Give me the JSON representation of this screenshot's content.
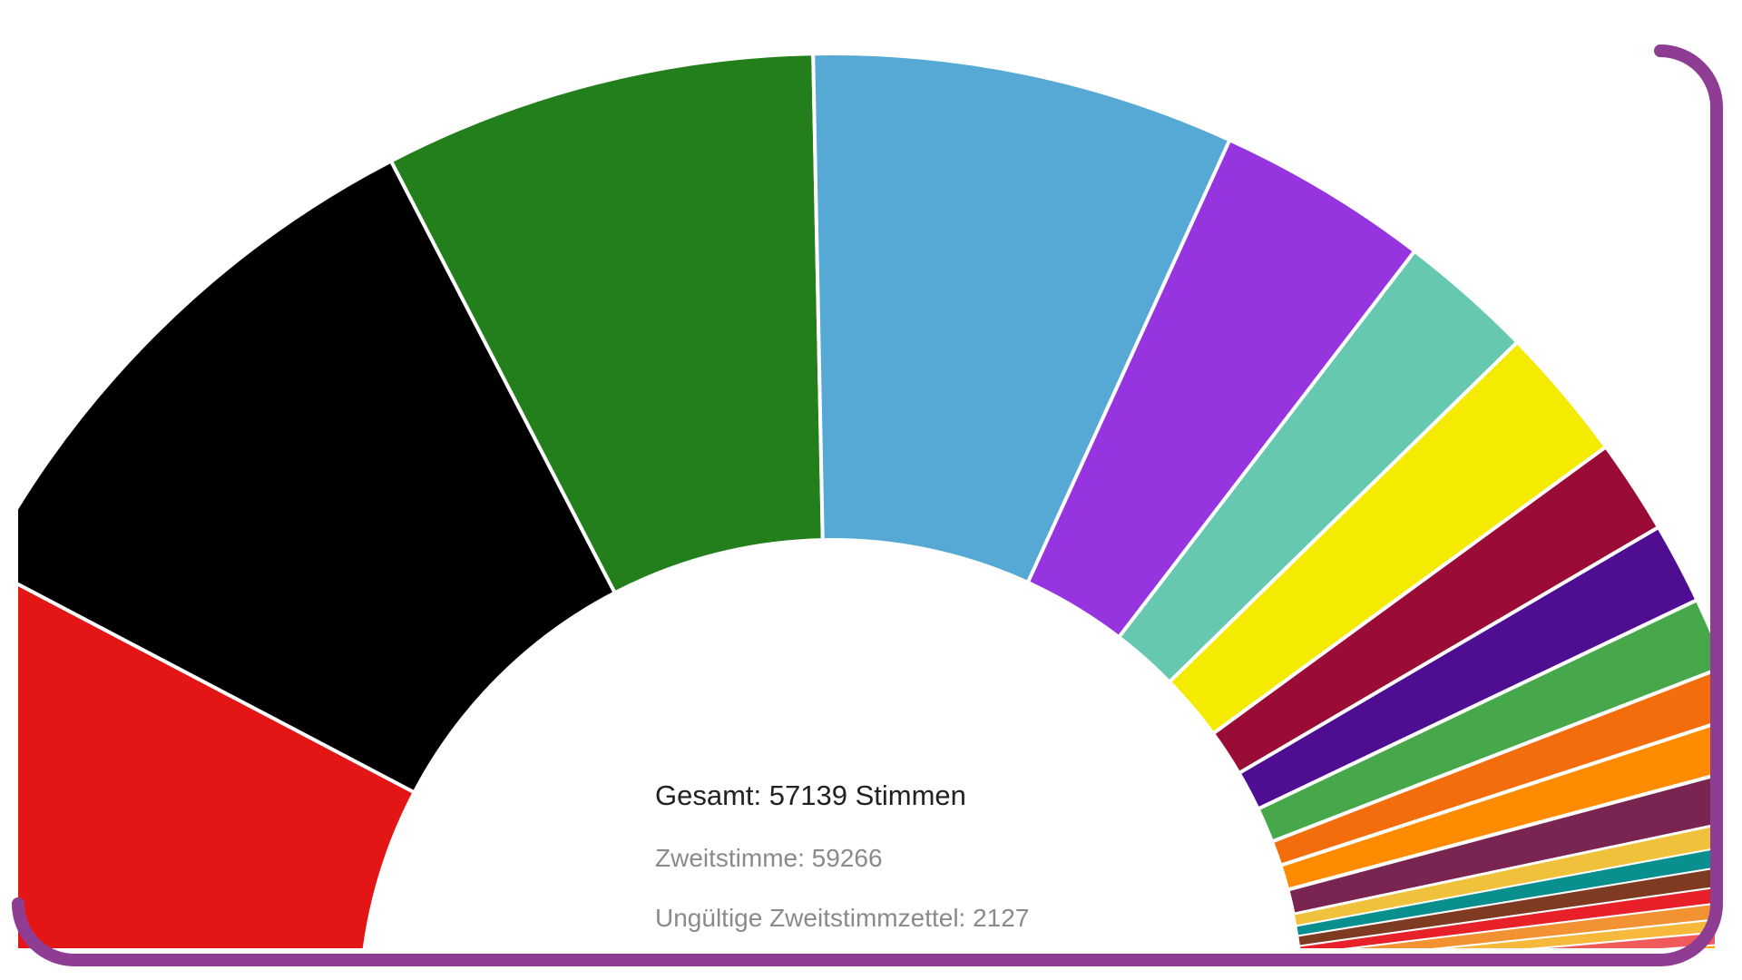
{
  "colors": {
    "frame_border": "#8e3d93",
    "background": "#ffffff"
  },
  "summary": {
    "total_text": "Gesamt: 57139 Stimmen",
    "secondary_text": "Zweitstimme: 59266",
    "invalid_text": "Ungültige Zweitstimmzettel: 2127"
  },
  "chart_data": {
    "type": "pie",
    "variant": "semicircle-donut",
    "title": "",
    "legend": "none",
    "slices": [
      {
        "value": 13.5,
        "color": "#e31615"
      },
      {
        "value": 17.0,
        "color": "#000000"
      },
      {
        "value": 12.8,
        "color": "#237f1b"
      },
      {
        "value": 12.5,
        "color": "#55a9d4"
      },
      {
        "value": 6.3,
        "color": "#9634df"
      },
      {
        "value": 4.0,
        "color": "#67c8b2"
      },
      {
        "value": 4.0,
        "color": "#f5eb00"
      },
      {
        "value": 2.8,
        "color": "#9a0c35"
      },
      {
        "value": 2.4,
        "color": "#4f0d92"
      },
      {
        "value": 2.1,
        "color": "#46a84b"
      },
      {
        "value": 1.5,
        "color": "#f46d0c"
      },
      {
        "value": 1.5,
        "color": "#ff8c00"
      },
      {
        "value": 1.5,
        "color": "#7a2452"
      },
      {
        "value": 0.7,
        "color": "#f0c13b"
      },
      {
        "value": 0.6,
        "color": "#0a8f8f"
      },
      {
        "value": 0.6,
        "color": "#7e3b21"
      },
      {
        "value": 0.5,
        "color": "#e8202a"
      },
      {
        "value": 0.5,
        "color": "#f39233"
      },
      {
        "value": 0.4,
        "color": "#f6b93b"
      },
      {
        "value": 0.4,
        "color": "#f05a5a"
      },
      {
        "value": 0.3,
        "color": "#f7a400"
      },
      {
        "value": 0.3,
        "color": "#ffd42a"
      },
      {
        "value": 0.3,
        "color": "#222222"
      },
      {
        "value": 0.3,
        "color": "#f4a3c0"
      },
      {
        "value": 0.3,
        "color": "#ffc845"
      },
      {
        "value": 0.2,
        "color": "#ff5c77"
      },
      {
        "value": 0.2,
        "color": "#2a5fa8"
      },
      {
        "value": 0.2,
        "color": "#ff9fb6"
      }
    ]
  }
}
